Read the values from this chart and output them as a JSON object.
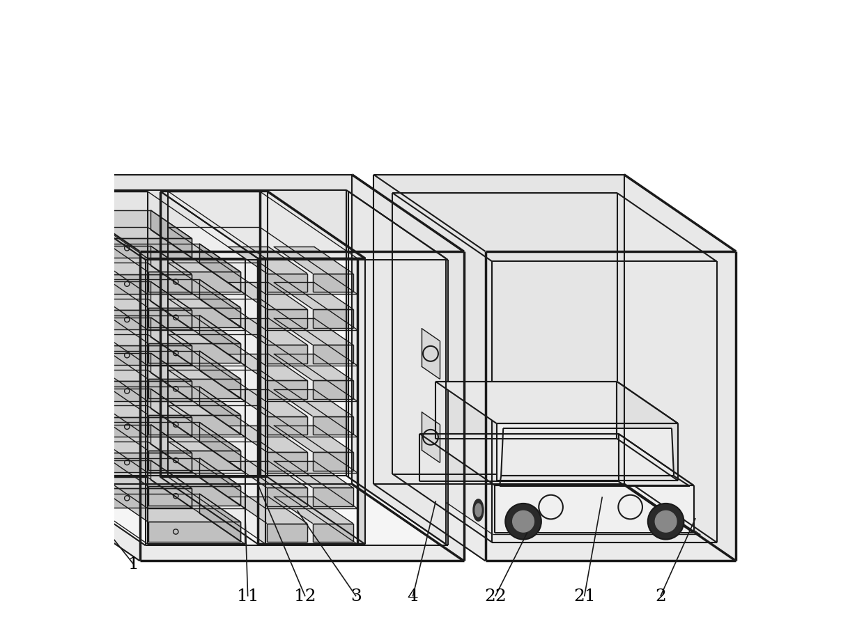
{
  "background_color": "#ffffff",
  "line_color": "#1a1a1a",
  "lw_outer": 2.5,
  "lw_inner": 1.5,
  "lw_thin": 1.0,
  "label_fontsize": 18,
  "fig_width": 12.4,
  "fig_height": 9.2,
  "dpi": 100,
  "proj": {
    "ox": 0.04,
    "oy": 0.12,
    "sx": [
      0.068,
      0.0
    ],
    "sy": [
      -0.032,
      0.022
    ],
    "sz": [
      0.0,
      0.075
    ]
  }
}
